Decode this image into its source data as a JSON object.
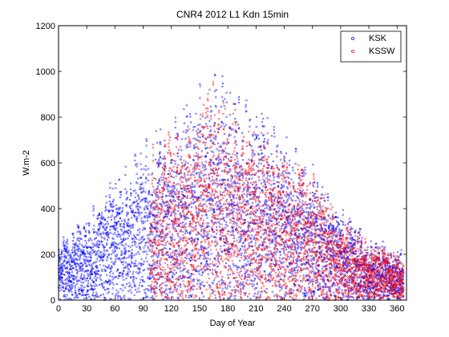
{
  "chart_data": {
    "type": "scatter",
    "title": "CNR4 2012 L1 Kdn 15min",
    "xlabel": "Day of Year",
    "ylabel": "W.m-2",
    "xlim": [
      0,
      370
    ],
    "ylim": [
      0,
      1200
    ],
    "xticks": [
      0,
      30,
      60,
      90,
      120,
      150,
      180,
      210,
      240,
      270,
      300,
      330,
      360
    ],
    "yticks": [
      0,
      200,
      400,
      600,
      800,
      1000,
      1200
    ],
    "grid": false,
    "legend_position": "top-right",
    "series": [
      {
        "name": "KSK",
        "color": "#0000ff",
        "marker": "circle",
        "daily_envelope_x": [
          0,
          15,
          30,
          45,
          60,
          75,
          90,
          97,
          120,
          135,
          150,
          165,
          180,
          195,
          210,
          225,
          240,
          255,
          270,
          285,
          300,
          315,
          330,
          345,
          365
        ],
        "daily_envelope_y": [
          280,
          320,
          380,
          470,
          560,
          640,
          720,
          760,
          840,
          900,
          960,
          1050,
          960,
          900,
          880,
          820,
          780,
          720,
          620,
          480,
          420,
          350,
          280,
          260,
          220
        ]
      },
      {
        "name": "KSSW",
        "color": "#ff0000",
        "marker": "circle",
        "x_start": 97,
        "daily_envelope_x": [
          97,
          120,
          135,
          150,
          165,
          180,
          195,
          210,
          225,
          240,
          255,
          270,
          285,
          300,
          315,
          330,
          345,
          365
        ],
        "daily_envelope_y": [
          700,
          760,
          820,
          880,
          1000,
          900,
          860,
          820,
          760,
          700,
          660,
          580,
          460,
          400,
          330,
          270,
          240,
          200
        ]
      }
    ]
  }
}
